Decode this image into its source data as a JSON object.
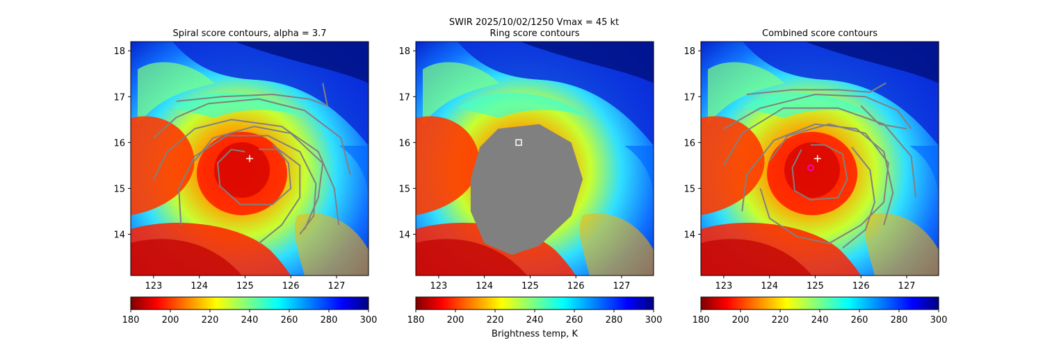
{
  "suptitle": "SWIR  2025/10/02/1250    Vmax = 45 kt",
  "colorbar": {
    "label": "Brightness temp, K",
    "ticks": [
      "180",
      "200",
      "220",
      "240",
      "260",
      "280",
      "300"
    ],
    "range": [
      180,
      300
    ],
    "colormap": "jet-reversed"
  },
  "colors": {
    "contour": "#808080",
    "marker": "#ffffff",
    "alt_marker": "#ff00ff"
  },
  "chart_data": [
    {
      "type": "heatmap",
      "title": "Spiral score contours, alpha =  3.7",
      "x_ticks": [
        "123",
        "124",
        "125",
        "126",
        "127"
      ],
      "y_ticks": [
        "14",
        "15",
        "16",
        "17",
        "18"
      ],
      "xlim": [
        122.5,
        127.7
      ],
      "ylim": [
        13.1,
        18.2
      ],
      "center_marker": {
        "symbol": "plus",
        "lon": 125.1,
        "lat": 15.65
      },
      "contours": [
        [
          [
            125.0,
            15.8
          ],
          [
            124.7,
            15.85
          ],
          [
            124.4,
            15.55
          ],
          [
            124.45,
            15.05
          ],
          [
            124.9,
            14.65
          ],
          [
            125.6,
            14.65
          ],
          [
            126.0,
            15.0
          ],
          [
            125.95,
            15.55
          ],
          [
            125.7,
            15.85
          ],
          [
            125.3,
            15.85
          ]
        ],
        [
          [
            123.6,
            14.2
          ],
          [
            123.55,
            15.0
          ],
          [
            123.9,
            15.7
          ],
          [
            124.6,
            16.15
          ],
          [
            125.5,
            16.15
          ],
          [
            126.2,
            15.8
          ],
          [
            126.55,
            15.1
          ],
          [
            126.5,
            14.4
          ],
          [
            126.2,
            14.0
          ]
        ],
        [
          [
            123.0,
            15.2
          ],
          [
            123.3,
            15.8
          ],
          [
            123.9,
            16.3
          ],
          [
            124.7,
            16.5
          ],
          [
            125.8,
            16.35
          ],
          [
            126.6,
            15.8
          ],
          [
            126.95,
            15.0
          ],
          [
            127.05,
            14.2
          ]
        ],
        [
          [
            123.0,
            16.1
          ],
          [
            123.5,
            16.55
          ],
          [
            124.2,
            16.85
          ],
          [
            125.3,
            16.95
          ],
          [
            126.3,
            16.7
          ],
          [
            127.1,
            16.1
          ],
          [
            127.3,
            15.3
          ]
        ],
        [
          [
            123.9,
            15.6
          ],
          [
            124.3,
            16.1
          ],
          [
            125.2,
            16.35
          ],
          [
            126.0,
            16.2
          ],
          [
            126.7,
            15.55
          ],
          [
            126.6,
            14.8
          ],
          [
            126.3,
            14.1
          ]
        ],
        [
          [
            125.3,
            13.8
          ],
          [
            125.8,
            14.2
          ],
          [
            126.2,
            14.8
          ],
          [
            126.2,
            15.5
          ],
          [
            125.6,
            15.95
          ]
        ],
        [
          [
            123.5,
            16.9
          ],
          [
            124.5,
            17.0
          ],
          [
            125.6,
            17.05
          ],
          [
            126.4,
            16.95
          ],
          [
            126.8,
            16.8
          ],
          [
            126.7,
            17.3
          ]
        ]
      ]
    },
    {
      "type": "heatmap",
      "title": "Ring score contours",
      "x_ticks": [
        "123",
        "124",
        "125",
        "126",
        "127"
      ],
      "y_ticks": [
        "14",
        "15",
        "16",
        "17",
        "18"
      ],
      "xlim": [
        122.5,
        127.7
      ],
      "ylim": [
        13.1,
        18.2
      ],
      "center_marker": {
        "symbol": "square",
        "lon": 124.75,
        "lat": 16.0
      },
      "masked_region": [
        [
          124.3,
          16.3
        ],
        [
          125.2,
          16.4
        ],
        [
          125.9,
          16.0
        ],
        [
          126.15,
          15.2
        ],
        [
          125.9,
          14.4
        ],
        [
          125.2,
          13.75
        ],
        [
          124.6,
          13.55
        ],
        [
          124.0,
          13.8
        ],
        [
          123.7,
          14.5
        ],
        [
          123.7,
          15.2
        ],
        [
          123.9,
          15.9
        ]
      ]
    },
    {
      "type": "heatmap",
      "title": "Combined score contours",
      "x_ticks": [
        "123",
        "124",
        "125",
        "126",
        "127"
      ],
      "y_ticks": [
        "14",
        "15",
        "16",
        "17",
        "18"
      ],
      "xlim": [
        122.5,
        127.7
      ],
      "ylim": [
        13.1,
        18.2
      ],
      "center_marker": {
        "symbol": "plus",
        "lon": 125.05,
        "lat": 15.65
      },
      "alt_marker": {
        "symbol": "circle",
        "lon": 124.9,
        "lat": 15.45
      },
      "contours": [
        [
          [
            124.7,
            15.85
          ],
          [
            124.5,
            15.45
          ],
          [
            124.55,
            14.95
          ],
          [
            124.9,
            14.75
          ],
          [
            125.5,
            14.8
          ],
          [
            125.7,
            15.2
          ],
          [
            125.6,
            15.75
          ],
          [
            125.2,
            15.95
          ],
          [
            124.9,
            15.95
          ]
        ],
        [
          [
            123.4,
            14.5
          ],
          [
            123.5,
            15.3
          ],
          [
            124.1,
            16.05
          ],
          [
            125.0,
            16.4
          ],
          [
            125.9,
            16.3
          ],
          [
            126.5,
            15.8
          ],
          [
            126.7,
            14.9
          ],
          [
            126.5,
            14.2
          ]
        ],
        [
          [
            123.0,
            15.5
          ],
          [
            123.4,
            16.2
          ],
          [
            124.3,
            16.75
          ],
          [
            125.5,
            16.75
          ],
          [
            126.5,
            16.4
          ],
          [
            127.1,
            15.7
          ],
          [
            127.2,
            14.8
          ]
        ],
        [
          [
            123.0,
            16.3
          ],
          [
            123.8,
            16.75
          ],
          [
            125.0,
            17.05
          ],
          [
            126.1,
            17.0
          ],
          [
            126.8,
            16.7
          ],
          [
            127.1,
            16.3
          ]
        ],
        [
          [
            124.0,
            15.6
          ],
          [
            124.4,
            16.15
          ],
          [
            125.3,
            16.4
          ],
          [
            126.1,
            16.2
          ],
          [
            126.6,
            15.55
          ],
          [
            126.5,
            14.7
          ],
          [
            126.0,
            14.2
          ],
          [
            125.3,
            13.8
          ],
          [
            124.6,
            13.95
          ],
          [
            124.0,
            14.35
          ],
          [
            123.8,
            15.0
          ]
        ],
        [
          [
            125.6,
            13.7
          ],
          [
            126.1,
            14.1
          ],
          [
            126.3,
            14.7
          ],
          [
            126.2,
            15.4
          ],
          [
            125.8,
            15.9
          ]
        ],
        [
          [
            123.5,
            17.05
          ],
          [
            124.5,
            17.15
          ],
          [
            125.5,
            17.15
          ],
          [
            126.2,
            17.1
          ],
          [
            126.55,
            17.3
          ]
        ],
        [
          [
            126.0,
            16.8
          ],
          [
            126.4,
            16.4
          ],
          [
            127.0,
            16.3
          ]
        ]
      ]
    }
  ]
}
